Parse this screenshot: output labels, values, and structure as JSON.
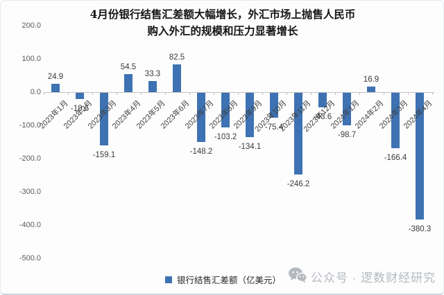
{
  "header": {
    "line1": "4月份银行结售汇差额大幅增长，外汇市场上抛售人民币",
    "line2": "购入外汇的规模和压力显著增长"
  },
  "chart_data": {
    "type": "bar",
    "title": "4月份银行结售汇差额大幅增长，外汇市场上抛售人民币购入外汇的规模和压力显著增长",
    "categories": [
      "2023年1月",
      "2023年2月",
      "2023年3月",
      "2023年4月",
      "2023年5月",
      "2023年6月",
      "2023年7月",
      "2023年8月",
      "2023年9月",
      "2023年10月",
      "2023年11月",
      "2023年12月",
      "2024年1月",
      "2024年2月",
      "2024年3月",
      "2024年4月"
    ],
    "values": [
      24.9,
      -18.6,
      -159.1,
      54.5,
      33.3,
      82.5,
      -148.2,
      -103.2,
      -134.1,
      -75.4,
      -246.2,
      -43.6,
      -98.7,
      16.9,
      -166.4,
      -380.3
    ],
    "series_name": "银行结售汇差额（亿美元）",
    "xlabel": "",
    "ylabel": "",
    "ylim": [
      -500,
      200
    ],
    "y_ticks": [
      200,
      100,
      0,
      -100,
      -200,
      -300,
      -400,
      -500
    ],
    "grid": false,
    "legend_position": "bottom",
    "bar_color": "#3e72b2"
  },
  "legend": {
    "label": "银行结售汇差额（亿美元）"
  },
  "watermark": {
    "icon": "wechat-icon",
    "text": "公众号 · 逻数财经研究"
  },
  "colors": {
    "bar": "#3e72b2",
    "axis": "#bfbfbf",
    "tick_label": "#595959",
    "value_label": "#3a3a3a",
    "title": "#141414",
    "watermark": "#b4b9bf"
  }
}
